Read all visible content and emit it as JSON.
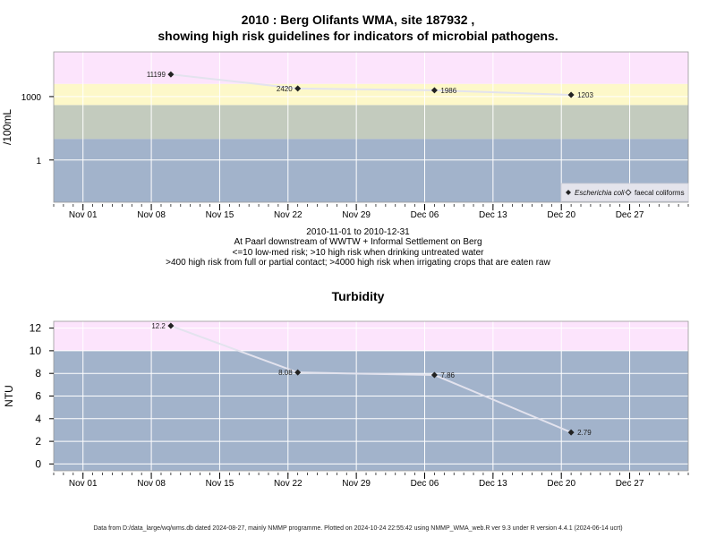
{
  "chart_data": [
    {
      "type": "line",
      "title_line1": "2010 : Berg Olifants WMA, site 187932 ,",
      "title_line2": "showing high risk guidelines for indicators of microbial pathogens.",
      "ylabel": "/100mL",
      "yscale": "log",
      "ylim": [
        0.01,
        130000
      ],
      "yticks": [
        {
          "v": 1,
          "label": "1"
        },
        {
          "v": 1000,
          "label": "1000"
        }
      ],
      "bands": [
        {
          "from": 0.01,
          "to": 10,
          "color": "#a2b3cb"
        },
        {
          "from": 10,
          "to": 400,
          "color": "#c3cbbe"
        },
        {
          "from": 400,
          "to": 4000,
          "color": "#fdf8c9"
        },
        {
          "from": 4000,
          "to": 130000,
          "color": "#fce4fc"
        }
      ],
      "series": [
        {
          "name": "Escherichia coli",
          "points": [
            {
              "date": "2010-11-10",
              "y": 11199,
              "label": "11199",
              "label_side": "left"
            },
            {
              "date": "2010-11-23",
              "y": 2420,
              "label": "2420",
              "label_side": "left"
            },
            {
              "date": "2010-12-07",
              "y": 1986,
              "label": "1986",
              "label_side": "right"
            },
            {
              "date": "2010-12-21",
              "y": 1203,
              "label": "1203",
              "label_side": "right"
            }
          ]
        }
      ],
      "legend": {
        "placement": "bottom-right",
        "items": [
          {
            "label": "Escherichia coli",
            "marker": "filled",
            "italic": true
          },
          {
            "label": "faecal coliforms",
            "marker": "open",
            "italic": false
          }
        ]
      },
      "caption": [
        "2010-11-01 to 2010-12-31",
        "At Paarl downstream of WWTW + Informal Settlement on Berg",
        "<=10 low-med risk; >10 high risk when drinking untreated water",
        ">400 high risk from full or partial contact; >4000 high risk when irrigating crops that are eaten raw"
      ]
    },
    {
      "type": "line",
      "title": "Turbidity",
      "ylabel": "NTU",
      "yscale": "linear",
      "ylim": [
        -0.6,
        12.6
      ],
      "yticks": [
        {
          "v": 0,
          "label": "0"
        },
        {
          "v": 2,
          "label": "2"
        },
        {
          "v": 4,
          "label": "4"
        },
        {
          "v": 6,
          "label": "6"
        },
        {
          "v": 8,
          "label": "8"
        },
        {
          "v": 10,
          "label": "10"
        },
        {
          "v": 12,
          "label": "12"
        }
      ],
      "bands": [
        {
          "from": -0.6,
          "to": 10,
          "color": "#a2b3cb"
        },
        {
          "from": 10,
          "to": 12.6,
          "color": "#fce4fc"
        }
      ],
      "series": [
        {
          "name": "Turbidity",
          "points": [
            {
              "date": "2010-11-10",
              "y": 12.2,
              "label": "12.2",
              "label_side": "left"
            },
            {
              "date": "2010-11-23",
              "y": 8.08,
              "label": "8.08",
              "label_side": "left"
            },
            {
              "date": "2010-12-07",
              "y": 7.86,
              "label": "7.86",
              "label_side": "right"
            },
            {
              "date": "2010-12-21",
              "y": 2.79,
              "label": "2.79",
              "label_side": "right"
            }
          ]
        }
      ]
    }
  ],
  "x_axis": {
    "xlim": [
      "2010-10-29",
      "2011-01-02"
    ],
    "ticks": [
      {
        "date": "2010-11-01",
        "label": "Nov 01"
      },
      {
        "date": "2010-11-08",
        "label": "Nov 08"
      },
      {
        "date": "2010-11-15",
        "label": "Nov 15"
      },
      {
        "date": "2010-11-22",
        "label": "Nov 22"
      },
      {
        "date": "2010-11-29",
        "label": "Nov 29"
      },
      {
        "date": "2010-12-06",
        "label": "Dec 06"
      },
      {
        "date": "2010-12-13",
        "label": "Dec 13"
      },
      {
        "date": "2010-12-20",
        "label": "Dec 20"
      },
      {
        "date": "2010-12-27",
        "label": "Dec 27"
      }
    ]
  },
  "footer": "Data from D:/data_large/wq/wms.db dated 2024-08-27, mainly NMMP programme. Plotted on 2024-10-24 22:55:42 using NMMP_WMA_web.R ver 9.3 under R version 4.4.1 (2024-06-14 ucrt)"
}
